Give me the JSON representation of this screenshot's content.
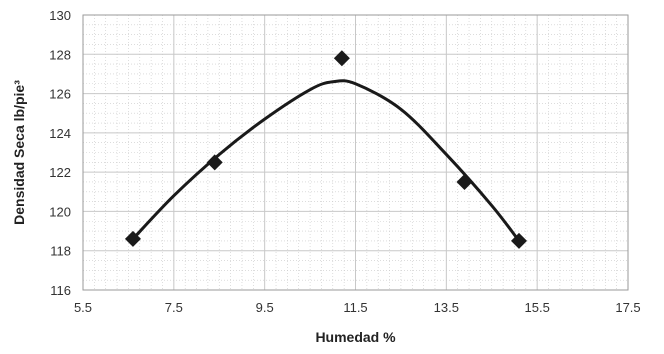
{
  "chart_data": {
    "type": "scatter",
    "title": "",
    "xlabel": "Humedad %",
    "ylabel": "Densidad Seca lb/pie³",
    "xlim": [
      5.5,
      17.5
    ],
    "ylim": [
      116,
      130
    ],
    "x_ticks": [
      "5.5",
      "7.5",
      "9.5",
      "11.5",
      "13.5",
      "15.5",
      "17.5"
    ],
    "y_ticks": [
      "116",
      "118",
      "120",
      "122",
      "124",
      "126",
      "128",
      "130"
    ],
    "grid": true,
    "marker": "diamond",
    "colors": {
      "marker": "#1a1a1a",
      "curve": "#1a1a1a",
      "grid": "#c8c8c8"
    },
    "series": [
      {
        "x": [
          6.6,
          8.4,
          11.2,
          13.9,
          15.1
        ],
        "y": [
          118.6,
          122.5,
          127.8,
          121.5,
          118.5
        ]
      }
    ],
    "trendline": {
      "type": "polynomial-2",
      "x": [
        6.6,
        7.5,
        8.5,
        9.5,
        10.5,
        11.0,
        11.5,
        12.5,
        13.5,
        14.5,
        15.1
      ],
      "y": [
        118.6,
        120.8,
        122.9,
        124.7,
        126.2,
        126.6,
        126.5,
        125.2,
        122.9,
        120.3,
        118.5
      ]
    }
  }
}
